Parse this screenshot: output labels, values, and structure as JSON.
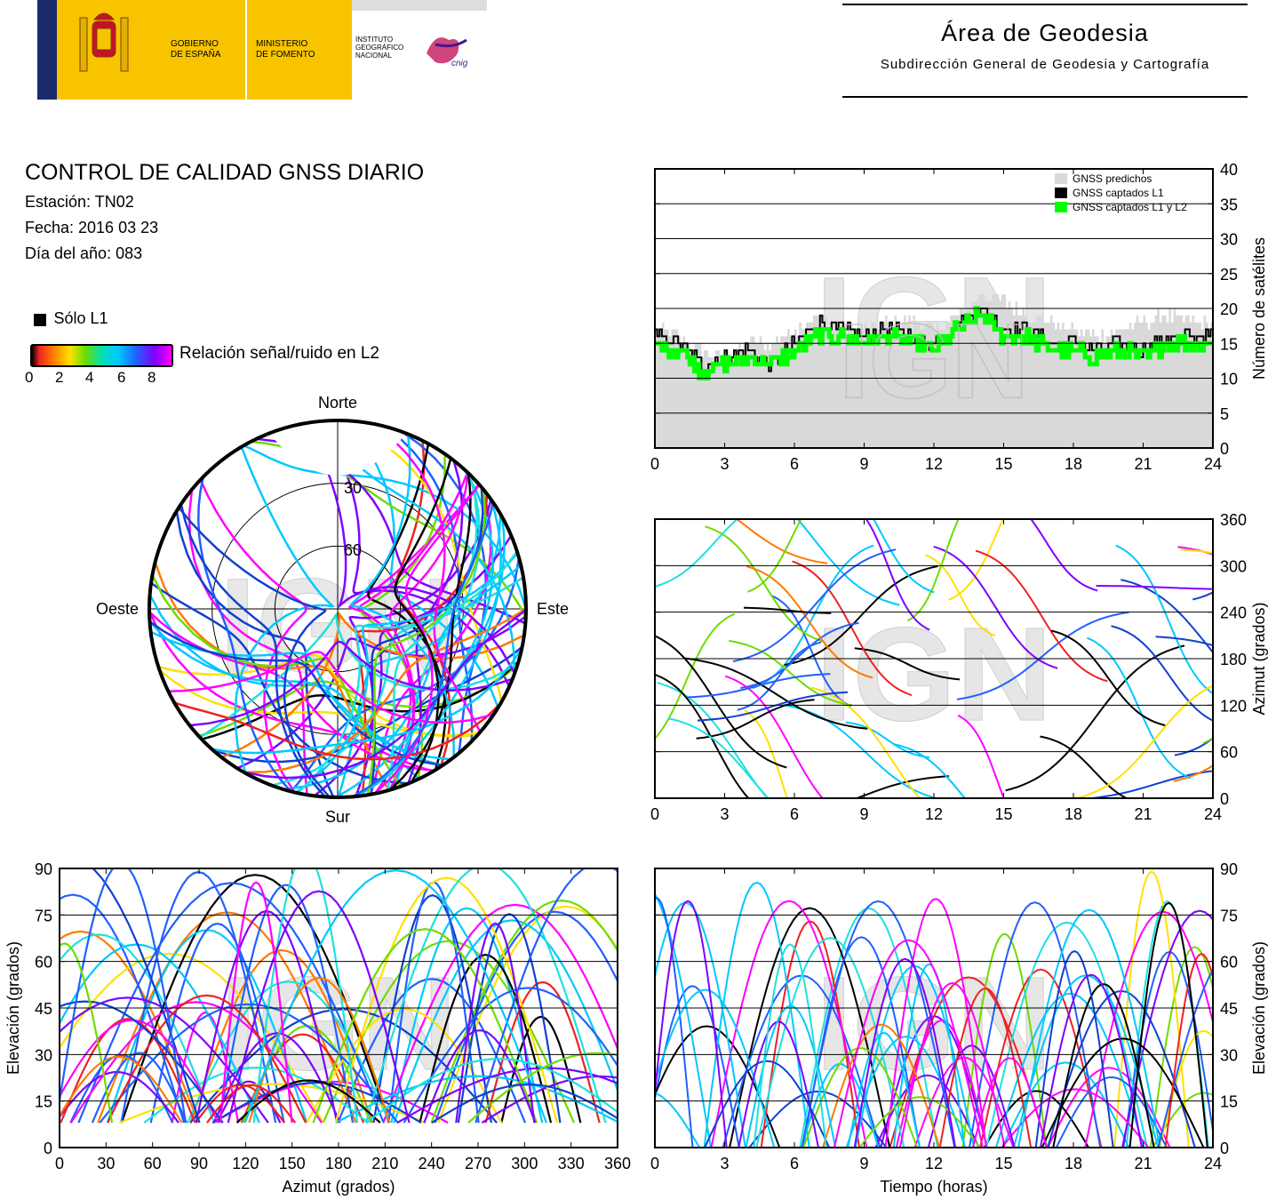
{
  "header": {
    "gobierno": [
      "GOBIERNO",
      "DE ESPAÑA"
    ],
    "ministerio": [
      "MINISTERIO",
      "DE FOMENTO"
    ],
    "instituto": [
      "INSTITUTO",
      "GEOGRÁFICO",
      "NACIONAL"
    ],
    "cnig_logo": "cnig",
    "area_title": "Área de Geodesia",
    "area_subtitle": "Subdirección General de Geodesia y Cartografía"
  },
  "info": {
    "title": "CONTROL DE CALIDAD GNSS DIARIO",
    "station": "Estación: TN02",
    "date": "Fecha: 2016 03 23",
    "doy": "Día del año: 083"
  },
  "legend": {
    "solo_l1": "Sólo L1",
    "snr_label": "Relación señal/ruido en L2",
    "colorbar_ticks": [
      "0",
      "2",
      "4",
      "6",
      "8"
    ]
  },
  "watermark": "IGN",
  "chart_data": [
    {
      "id": "satellite-count",
      "type": "area",
      "xlabel": "",
      "ylabel": "Número de satélites",
      "xlim": [
        0,
        24
      ],
      "ylim": [
        0,
        40
      ],
      "xticks": [
        "0",
        "3",
        "6",
        "9",
        "12",
        "15",
        "18",
        "21",
        "24"
      ],
      "yticks": [
        "0",
        "5",
        "10",
        "15",
        "20",
        "25",
        "30",
        "35",
        "40"
      ],
      "legend_position": "top-right",
      "series": [
        {
          "name": "GNSS predichos",
          "color": "#d9d9d9",
          "x": [
            0,
            1,
            2,
            3,
            4,
            5,
            6,
            7,
            8,
            9,
            10,
            11,
            12,
            13,
            14,
            15,
            16,
            17,
            18,
            19,
            20,
            21,
            22,
            23,
            24
          ],
          "values": [
            17,
            16,
            14,
            13,
            15,
            15,
            17,
            19,
            17,
            17,
            18,
            18,
            17,
            19,
            22,
            21,
            19,
            18,
            17,
            16,
            17,
            18,
            19,
            18,
            18
          ]
        },
        {
          "name": "GNSS captados L1",
          "color": "#000000",
          "x": [
            0,
            1,
            2,
            3,
            4,
            5,
            6,
            7,
            8,
            9,
            10,
            11,
            12,
            13,
            14,
            15,
            16,
            17,
            18,
            19,
            20,
            21,
            22,
            23,
            24
          ],
          "values": [
            16,
            15,
            12,
            13,
            14,
            12,
            15,
            18,
            17,
            16,
            17,
            16,
            15,
            18,
            20,
            17,
            17,
            15,
            15,
            14,
            15,
            14,
            16,
            16,
            16
          ]
        },
        {
          "name": "GNSS captados L1 y L2",
          "color": "#00ff00",
          "x": [
            0,
            1,
            2,
            3,
            4,
            5,
            6,
            7,
            8,
            9,
            10,
            11,
            12,
            13,
            14,
            15,
            16,
            17,
            18,
            19,
            20,
            21,
            22,
            23,
            24
          ],
          "values": [
            15,
            14,
            11,
            12,
            13,
            12,
            14,
            16,
            16,
            15,
            16,
            15,
            14,
            17,
            19,
            16,
            16,
            14,
            14,
            13,
            14,
            13,
            15,
            15,
            15
          ]
        }
      ]
    },
    {
      "id": "skyplot",
      "type": "scatter",
      "labels": {
        "north": "Norte",
        "south": "Sur",
        "east": "Este",
        "west": "Oeste"
      },
      "ring_labels": [
        "30",
        "60"
      ]
    },
    {
      "id": "azimuth-time",
      "type": "scatter",
      "xlabel": "",
      "ylabel": "Azimut (grados)",
      "xlim": [
        0,
        24
      ],
      "ylim": [
        0,
        360
      ],
      "xticks": [
        "0",
        "3",
        "6",
        "9",
        "12",
        "15",
        "18",
        "21",
        "24"
      ],
      "yticks": [
        "0",
        "60",
        "120",
        "180",
        "240",
        "300",
        "360"
      ]
    },
    {
      "id": "elevation-azimuth",
      "type": "scatter",
      "xlabel": "Azimut (grados)",
      "ylabel": "Elevación (grados)",
      "xlim": [
        0,
        360
      ],
      "ylim": [
        0,
        90
      ],
      "xticks": [
        "0",
        "30",
        "60",
        "90",
        "120",
        "150",
        "180",
        "210",
        "240",
        "270",
        "300",
        "330",
        "360"
      ],
      "yticks": [
        "0",
        "15",
        "30",
        "45",
        "60",
        "75",
        "90"
      ]
    },
    {
      "id": "elevation-time",
      "type": "scatter",
      "xlabel": "Tiempo (horas)",
      "ylabel": "Elevación (grados)",
      "xlim": [
        0,
        24
      ],
      "ylim": [
        0,
        90
      ],
      "xticks": [
        "0",
        "3",
        "6",
        "9",
        "12",
        "15",
        "18",
        "21",
        "24"
      ],
      "yticks": [
        "0",
        "15",
        "30",
        "45",
        "60",
        "75",
        "90"
      ]
    }
  ]
}
